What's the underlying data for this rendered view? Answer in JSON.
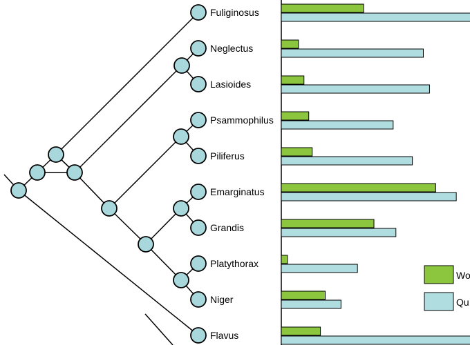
{
  "colors": {
    "node_fill": "#a8d8dc",
    "line": "#000000",
    "worker_bar": "#8cc63f",
    "queen_bar": "#b0dde0"
  },
  "tree": {
    "taxa": [
      "Fuliginosus",
      "Neglectus",
      "Lasioides",
      "Psammophilus",
      "Piliferus",
      "Emarginatus",
      "Grandis",
      "Platythorax",
      "Niger",
      "Flavus"
    ]
  },
  "legend": {
    "items": [
      {
        "label": "Wo",
        "series": "worker"
      },
      {
        "label": "Qu",
        "series": "queen"
      }
    ]
  },
  "chart_data": {
    "type": "bar",
    "orientation": "horizontal",
    "categories": [
      "Fuliginosus",
      "Neglectus",
      "Lasioides",
      "Psammophilus",
      "Piliferus",
      "Emarginatus",
      "Grandis",
      "Platythorax",
      "Niger",
      "Flavus"
    ],
    "series": [
      {
        "name": "Wo",
        "values": [
          120,
          25,
          33,
          40,
          45,
          225,
          135,
          9,
          64,
          57
        ]
      },
      {
        "name": "Qu",
        "values": [
          285,
          207,
          216,
          163,
          191,
          255,
          167,
          111,
          87,
          285
        ]
      }
    ],
    "xlim": [
      0,
      275
    ],
    "grid": false,
    "legend_position": "bottom-right"
  }
}
